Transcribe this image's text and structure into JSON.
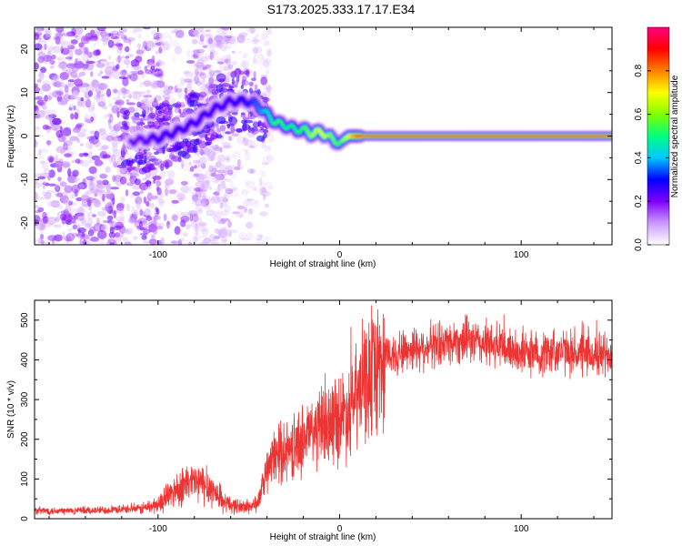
{
  "title": "S173.2025.333.17.17.E34",
  "chart_data": [
    {
      "type": "heatmap",
      "xlabel": "Height of straight line (km)",
      "ylabel": "Frequency (Hz)",
      "xlim": [
        -168,
        150
      ],
      "ylim": [
        -25,
        25
      ],
      "x_ticks": [
        -100,
        0,
        100
      ],
      "y_ticks": [
        -20,
        -10,
        0,
        10,
        20
      ],
      "colorbar": {
        "label": "Normalized spectral amplitude",
        "range": [
          0,
          1
        ],
        "ticks": [
          0.0,
          0.2,
          0.4,
          0.6,
          0.8
        ],
        "colors": [
          "#ffffff",
          "#cc99ff",
          "#8000ff",
          "#0000ff",
          "#00c8ff",
          "#00ff80",
          "#80ff00",
          "#ffff00",
          "#ff8000",
          "#ff0000",
          "#ff0080"
        ]
      },
      "ridge": {
        "x": [
          -110,
          -100,
          -90,
          -80,
          -70,
          -60,
          -50,
          -45,
          -40,
          -35,
          -30,
          -25,
          -20,
          -15,
          -10,
          -5,
          0,
          5,
          10,
          20,
          50,
          100,
          150
        ],
        "frequency": [
          -1,
          -0.5,
          1,
          3,
          6,
          8,
          8,
          7,
          5,
          3,
          2.5,
          1.5,
          1.5,
          0.5,
          1,
          -0.5,
          -1.5,
          0,
          0,
          0,
          0,
          0,
          0
        ],
        "amplitude": [
          0.25,
          0.3,
          0.3,
          0.3,
          0.3,
          0.3,
          0.35,
          0.4,
          0.5,
          0.6,
          0.55,
          0.55,
          0.6,
          0.7,
          0.75,
          0.65,
          0.6,
          0.8,
          0.95,
          0.95,
          0.95,
          0.95,
          0.95
        ]
      }
    },
    {
      "type": "line",
      "xlabel": "Height of straight line (km)",
      "ylabel": "SNR (10 * v/v)",
      "xlim": [
        -168,
        150
      ],
      "ylim": [
        0,
        550
      ],
      "x_ticks": [
        -100,
        0,
        100
      ],
      "y_ticks": [
        0,
        100,
        200,
        300,
        400,
        500
      ],
      "color": "#ee3333",
      "series": [
        {
          "x": [
            -168,
            -140,
            -110,
            -100,
            -95,
            -90,
            -85,
            -80,
            -75,
            -70,
            -65,
            -60,
            -55,
            -50,
            -45,
            -42,
            -38,
            -35,
            -30,
            -25,
            -20,
            -15,
            -10,
            -5,
            0,
            5,
            10,
            15,
            20,
            25,
            30,
            40,
            50,
            60,
            70,
            80,
            90,
            100,
            110,
            120,
            130,
            140,
            150
          ],
          "values": [
            20,
            20,
            25,
            35,
            55,
            75,
            85,
            90,
            85,
            75,
            45,
            35,
            30,
            30,
            40,
            90,
            140,
            160,
            170,
            180,
            200,
            220,
            230,
            245,
            255,
            275,
            310,
            350,
            380,
            405,
            415,
            430,
            435,
            445,
            450,
            440,
            430,
            420,
            415,
            425,
            415,
            410,
            420
          ]
        }
      ]
    }
  ]
}
